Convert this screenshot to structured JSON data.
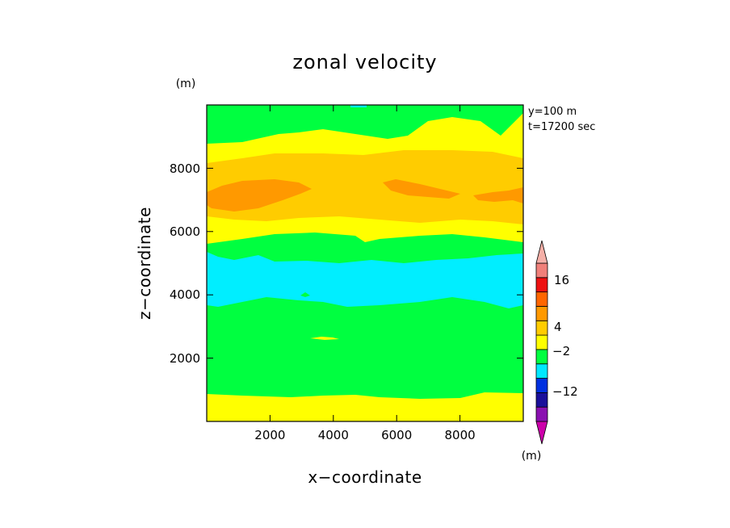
{
  "chart_data": {
    "type": "heatmap",
    "title": "zonal velocity",
    "xlabel": "x−coordinate",
    "ylabel": "z−coordinate",
    "x_unit": "(m)",
    "y_unit": "(m)",
    "xlim": [
      0,
      10000
    ],
    "ylim": [
      0,
      10000
    ],
    "x_ticks": [
      "2000",
      "4000",
      "6000",
      "8000"
    ],
    "y_ticks": [
      "2000",
      "4000",
      "6000",
      "8000"
    ],
    "annotations": [
      "y=100 m",
      "t=17200 sec"
    ],
    "colorbar": {
      "unit": "(m)",
      "tick_labels": [
        "16",
        "4",
        "−2",
        "−12"
      ],
      "colors": [
        "#cc00aa",
        "#8a10b0",
        "#1a0f9a",
        "#0030e0",
        "#00e8ff",
        "#00ff40",
        "#ffff00",
        "#ffcc00",
        "#ff9900",
        "#ff6600",
        "#ee1111",
        "#f0807a",
        "#f5b0a8"
      ]
    },
    "field_colors": {
      "cyan": "#00eeff",
      "green": "#00ff40",
      "yellow": "#ffff00",
      "gold": "#ffcc00",
      "orange": "#ff9900"
    },
    "bands": [
      {
        "z_range": [
          0,
          800
        ],
        "color": "yellow"
      },
      {
        "z_range": [
          800,
          3600
        ],
        "color": "green"
      },
      {
        "z_range": [
          3600,
          5400
        ],
        "color": "cyan"
      },
      {
        "z_range": [
          5400,
          6000
        ],
        "color": "green"
      },
      {
        "z_range": [
          6000,
          6600
        ],
        "color": "yellow"
      },
      {
        "z_range": [
          6600,
          8500
        ],
        "color": "gold"
      },
      {
        "z_range": [
          8500,
          9000
        ],
        "color": "yellow"
      },
      {
        "z_range": [
          9000,
          10000
        ],
        "color": "green"
      }
    ]
  }
}
